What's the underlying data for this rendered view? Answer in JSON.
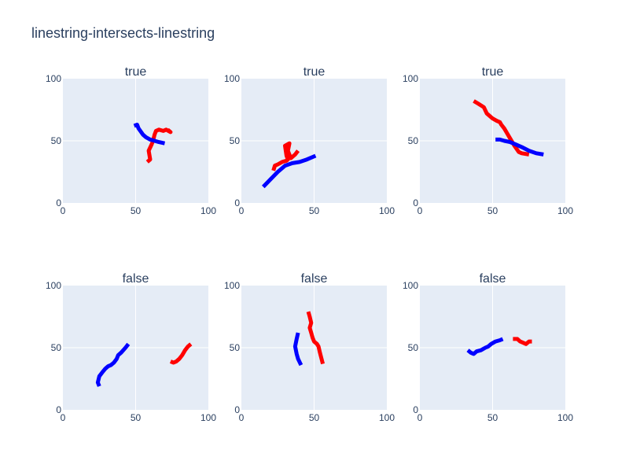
{
  "title": "linestring-intersects-linestring",
  "colors": {
    "plot_bg": "#E5ECF6",
    "grid": "#ffffff",
    "text": "#2a3f5f",
    "line_a": "#ff0000",
    "line_b": "#0000ff"
  },
  "chart_data": [
    {
      "type": "line",
      "title": "true",
      "xlim": [
        0,
        100
      ],
      "ylim": [
        0,
        100
      ],
      "xticks": [
        "0",
        "50",
        "100"
      ],
      "yticks": [
        "0",
        "50",
        "100"
      ],
      "series": [
        {
          "color": "#ff0000",
          "x": [
            58,
            60,
            59,
            61,
            62,
            63,
            64,
            66,
            69,
            71,
            74,
            72
          ],
          "y": [
            33,
            35,
            42,
            47,
            50,
            55,
            58,
            59,
            58,
            59,
            57,
            59
          ]
        },
        {
          "color": "#0000ff",
          "x": [
            49,
            51,
            52,
            55,
            57,
            60,
            63,
            66,
            70
          ],
          "y": [
            62,
            63,
            60,
            55,
            53,
            51,
            50,
            49,
            48
          ]
        }
      ]
    },
    {
      "type": "line",
      "title": "true",
      "xlim": [
        0,
        100
      ],
      "ylim": [
        0,
        100
      ],
      "xticks": [
        "0",
        "50",
        "100"
      ],
      "yticks": [
        "0",
        "50",
        "100"
      ],
      "series": [
        {
          "color": "#ff0000",
          "x": [
            22,
            23,
            25,
            28,
            31,
            32,
            31,
            30,
            33,
            32,
            34,
            37,
            39
          ],
          "y": [
            26,
            30,
            31,
            33,
            34,
            35,
            38,
            46,
            48,
            42,
            36,
            39,
            42
          ]
        },
        {
          "color": "#0000ff",
          "x": [
            15,
            20,
            25,
            30,
            35,
            40,
            45,
            51
          ],
          "y": [
            13,
            19,
            25,
            30,
            32,
            33,
            35,
            38
          ]
        }
      ]
    },
    {
      "type": "line",
      "title": "true",
      "xlim": [
        0,
        100
      ],
      "ylim": [
        0,
        100
      ],
      "xticks": [
        "0",
        "50",
        "100"
      ],
      "yticks": [
        "0",
        "50",
        "100"
      ],
      "series": [
        {
          "color": "#ff0000",
          "x": [
            37,
            40,
            44,
            46,
            50,
            53,
            55,
            56,
            58,
            60,
            62,
            65,
            68,
            70,
            75
          ],
          "y": [
            82,
            80,
            77,
            72,
            68,
            66,
            65,
            63,
            60,
            56,
            52,
            46,
            41,
            40,
            39
          ]
        },
        {
          "color": "#0000ff",
          "x": [
            52,
            55,
            58,
            62,
            66,
            70,
            75,
            80,
            85
          ],
          "y": [
            51,
            51,
            50,
            49,
            47,
            45,
            42,
            40,
            39
          ]
        }
      ]
    },
    {
      "type": "line",
      "title": "false",
      "xlim": [
        0,
        100
      ],
      "ylim": [
        0,
        100
      ],
      "xticks": [
        "0",
        "50",
        "100"
      ],
      "yticks": [
        "0",
        "50",
        "100"
      ],
      "series": [
        {
          "color": "#ff0000",
          "x": [
            74,
            76,
            78,
            80,
            82,
            84,
            86,
            88
          ],
          "y": [
            39,
            38,
            39,
            41,
            44,
            48,
            51,
            53
          ]
        },
        {
          "color": "#0000ff",
          "x": [
            25,
            24,
            25,
            27,
            29,
            31,
            33,
            35,
            37,
            38,
            40,
            43,
            45
          ],
          "y": [
            19,
            22,
            27,
            30,
            33,
            35,
            36,
            38,
            41,
            44,
            46,
            50,
            53
          ]
        }
      ]
    },
    {
      "type": "line",
      "title": "false",
      "xlim": [
        0,
        100
      ],
      "ylim": [
        0,
        100
      ],
      "xticks": [
        "0",
        "50",
        "100"
      ],
      "yticks": [
        "0",
        "50",
        "100"
      ],
      "series": [
        {
          "color": "#ff0000",
          "x": [
            46,
            47,
            48,
            47,
            48,
            49,
            50,
            52,
            53,
            54,
            56
          ],
          "y": [
            79,
            75,
            70,
            66,
            62,
            58,
            55,
            53,
            51,
            46,
            37
          ]
        },
        {
          "color": "#0000ff",
          "x": [
            39,
            38,
            37,
            38,
            39,
            41
          ],
          "y": [
            62,
            57,
            51,
            45,
            41,
            36
          ]
        }
      ]
    },
    {
      "type": "line",
      "title": "false",
      "xlim": [
        0,
        100
      ],
      "ylim": [
        0,
        100
      ],
      "xticks": [
        "0",
        "50",
        "100"
      ],
      "yticks": [
        "0",
        "50",
        "100"
      ],
      "series": [
        {
          "color": "#ff0000",
          "x": [
            64,
            67,
            69,
            71,
            73,
            75,
            77
          ],
          "y": [
            57,
            57,
            55,
            54,
            53,
            55,
            55
          ]
        },
        {
          "color": "#0000ff",
          "x": [
            33,
            35,
            37,
            39,
            42,
            45,
            47,
            49,
            52,
            55,
            57
          ],
          "y": [
            48,
            46,
            45,
            47,
            48,
            50,
            51,
            53,
            55,
            56,
            57
          ]
        }
      ]
    }
  ]
}
